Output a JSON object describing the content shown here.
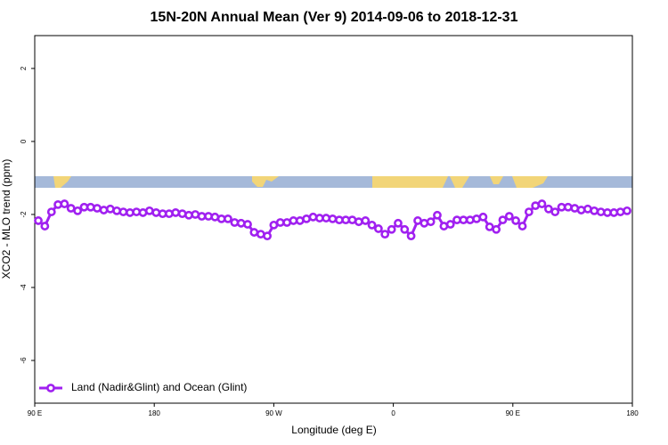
{
  "chart_data": {
    "type": "line",
    "title": "15N-20N Annual Mean (Ver 9)   2014-09-06 to 2018-12-31",
    "x_label": "Longitude (deg E)",
    "y_label": "XCO2 - MLO trend (ppm)",
    "xlim": [
      90,
      540
    ],
    "ylim": [
      -7.17,
      2.9
    ],
    "xticks": [
      {
        "value": 90,
        "label": "90 E"
      },
      180,
      {
        "value": 270,
        "label": "90 W"
      },
      {
        "value": 360,
        "label": "0"
      },
      {
        "value": 450,
        "label": "90 E"
      },
      {
        "value": 540,
        "label": "180"
      }
    ],
    "yticks": [
      2,
      0,
      -2,
      -4,
      -6
    ],
    "legend": "bottom-left",
    "x": [
      92.7,
      97.6,
      102.6,
      107.5,
      112.4,
      117.3,
      122.3,
      127.2,
      132.1,
      137.0,
      142.0,
      146.9,
      151.8,
      156.7,
      161.7,
      166.6,
      171.5,
      176.4,
      181.4,
      186.3,
      191.2,
      196.1,
      201.1,
      206.0,
      210.9,
      215.8,
      220.8,
      225.7,
      230.6,
      235.5,
      240.5,
      245.4,
      250.3,
      255.2,
      260.2,
      265.1,
      270.0,
      274.9,
      279.9,
      284.8,
      289.7,
      294.6,
      299.6,
      304.5,
      309.4,
      314.3,
      319.3,
      324.2,
      329.1,
      334.0,
      339.0,
      343.9,
      348.8,
      353.7,
      358.7,
      363.6,
      368.5,
      373.4,
      378.4,
      383.3,
      388.2,
      393.1,
      398.1,
      403.0,
      407.9,
      412.8,
      417.8,
      422.7,
      427.6,
      432.5,
      437.5,
      442.4,
      447.3,
      452.2,
      457.2,
      462.1,
      467.0,
      471.9,
      476.9,
      481.8,
      486.7,
      491.6,
      496.6,
      501.5,
      506.4,
      511.3,
      516.3,
      521.2,
      526.1,
      531.0,
      536.0
    ],
    "series": [
      {
        "name": "Land (Nadir&Glint) and Ocean (Glint)",
        "color": "#a020f0",
        "values": [
          -2.17,
          -2.32,
          -1.93,
          -1.73,
          -1.71,
          -1.83,
          -1.9,
          -1.8,
          -1.8,
          -1.83,
          -1.88,
          -1.85,
          -1.9,
          -1.93,
          -1.95,
          -1.93,
          -1.95,
          -1.9,
          -1.95,
          -1.98,
          -1.98,
          -1.95,
          -1.98,
          -2.02,
          -2.0,
          -2.05,
          -2.05,
          -2.07,
          -2.12,
          -2.12,
          -2.22,
          -2.24,
          -2.27,
          -2.49,
          -2.54,
          -2.59,
          -2.29,
          -2.22,
          -2.22,
          -2.17,
          -2.17,
          -2.12,
          -2.07,
          -2.1,
          -2.1,
          -2.12,
          -2.15,
          -2.15,
          -2.15,
          -2.2,
          -2.17,
          -2.29,
          -2.39,
          -2.54,
          -2.41,
          -2.24,
          -2.41,
          -2.59,
          -2.17,
          -2.24,
          -2.2,
          -2.02,
          -2.32,
          -2.27,
          -2.15,
          -2.15,
          -2.15,
          -2.12,
          -2.07,
          -2.34,
          -2.41,
          -2.15,
          -2.05,
          -2.17,
          -2.32,
          -1.93,
          -1.76,
          -1.71,
          -1.85,
          -1.93,
          -1.8,
          -1.8,
          -1.83,
          -1.88,
          -1.85,
          -1.9,
          -1.93,
          -1.95,
          -1.95,
          -1.93,
          -1.9
        ]
      }
    ]
  }
}
